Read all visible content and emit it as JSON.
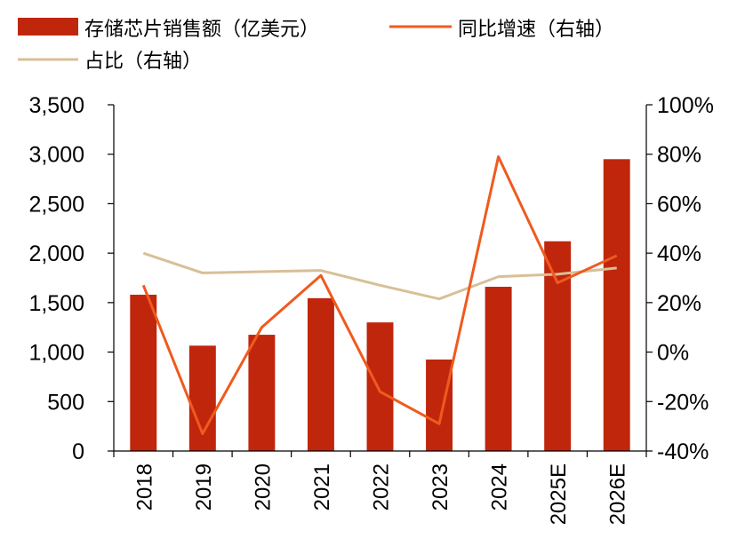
{
  "chart_data": {
    "type": "bar",
    "categories": [
      "2018",
      "2019",
      "2020",
      "2021",
      "2022",
      "2023",
      "2024",
      "2025E",
      "2026E"
    ],
    "series": [
      {
        "name": "存储芯片销售额（亿美元）",
        "type": "bar",
        "axis": "left",
        "color": "#c0260c",
        "values": [
          1580,
          1065,
          1175,
          1545,
          1300,
          925,
          1660,
          2120,
          2950
        ]
      },
      {
        "name": "同比增速（右轴）",
        "type": "line",
        "axis": "right",
        "color": "#f05a1e",
        "values": [
          27,
          -33,
          10,
          31,
          -16,
          -29,
          79,
          28,
          39
        ]
      },
      {
        "name": "占比（右轴）",
        "type": "line",
        "axis": "right",
        "color": "#d8bf97",
        "values": [
          40,
          32,
          32.5,
          33,
          27,
          21.5,
          30.5,
          31.5,
          34
        ]
      }
    ],
    "left_axis": {
      "ylim": [
        0,
        3500
      ],
      "ticks": [
        0,
        500,
        1000,
        1500,
        2000,
        2500,
        3000,
        3500
      ],
      "tick_labels": [
        "0",
        "500",
        "1,000",
        "1,500",
        "2,000",
        "2,500",
        "3,000",
        "3,500"
      ]
    },
    "right_axis": {
      "ylim": [
        -40,
        100
      ],
      "ticks": [
        -40,
        -20,
        0,
        20,
        40,
        60,
        80,
        100
      ],
      "tick_labels": [
        "-40%",
        "-20%",
        "0%",
        "20%",
        "40%",
        "60%",
        "80%",
        "100%"
      ]
    },
    "grid": false,
    "legend": "top-left"
  }
}
